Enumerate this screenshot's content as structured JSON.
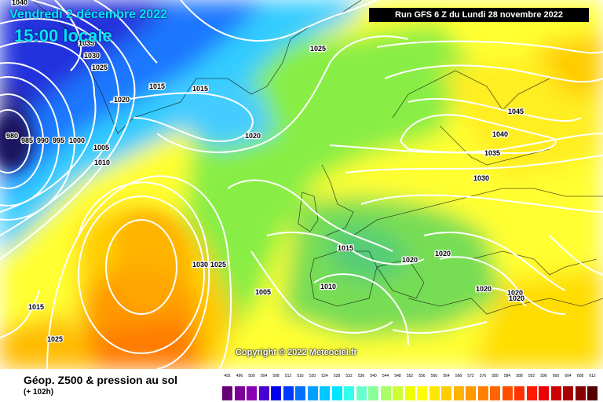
{
  "header": {
    "date": "Vendredi 2 décembre 2022",
    "time": "15:00 locale",
    "run": "Run GFS 6 Z du Lundi 28 novembre 2022"
  },
  "copyright": "Copyright © 2022 Meteociel.fr",
  "footer": {
    "title": "Géop. Z500 & pression au sol",
    "subtitle": "(+ 102h)"
  },
  "isobar_labels": [
    "1040",
    "1035",
    "1030",
    "1025",
    "1020",
    "1015",
    "980",
    "985",
    "990",
    "995",
    "1000",
    "1005",
    "1010",
    "1015",
    "1020",
    "1025",
    "1030",
    "1035",
    "1040",
    "1045",
    "1020",
    "1015",
    "1030",
    "1025",
    "1005",
    "1010",
    "1020",
    "1020",
    "1020",
    "1020",
    "1015",
    "1025"
  ],
  "legend": {
    "labels": [
      "492",
      "496",
      "500",
      "504",
      "508",
      "512",
      "516",
      "520",
      "524",
      "528",
      "532",
      "536",
      "540",
      "544",
      "548",
      "552",
      "556",
      "560",
      "564",
      "568",
      "572",
      "576",
      "580",
      "584",
      "588",
      "592",
      "596",
      "600",
      "604",
      "608",
      "612"
    ],
    "colors": [
      "#6a0079",
      "#7a0096",
      "#8a00b4",
      "#4a00d2",
      "#0000ee",
      "#0038ff",
      "#0070ff",
      "#00a0ff",
      "#00c8ff",
      "#00e6ff",
      "#33ffee",
      "#66ffcc",
      "#88ff99",
      "#aaff66",
      "#ccff33",
      "#eeff00",
      "#ffff00",
      "#ffe600",
      "#ffcc00",
      "#ffb300",
      "#ff9900",
      "#ff8000",
      "#ff6600",
      "#ff4d00",
      "#ff3300",
      "#ff1a00",
      "#ee0000",
      "#cc0000",
      "#aa0000",
      "#880000",
      "#550000"
    ]
  }
}
